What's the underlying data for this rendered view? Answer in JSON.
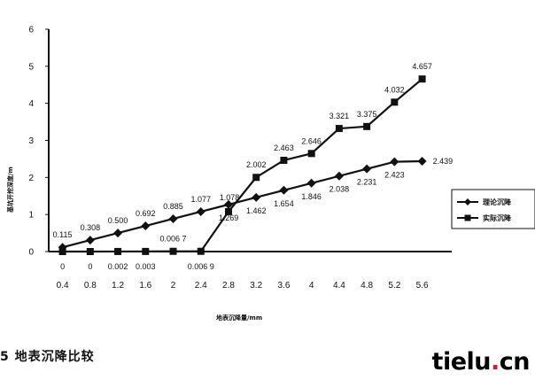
{
  "chart_data": {
    "type": "line",
    "xlabel": "地表沉降量/mm",
    "ylabel": "基坑开挖深度/m",
    "ylim": [
      0,
      6
    ],
    "yticks": [
      "0",
      "1",
      "2",
      "3",
      "4",
      "5",
      "6"
    ],
    "x_categories": [
      "0.4",
      "0.8",
      "1.2",
      "1.6",
      "2",
      "2.4",
      "2.8",
      "3.2",
      "3.6",
      "4",
      "4.4",
      "4.8",
      "5.2",
      "5.6"
    ],
    "legend_position": "right",
    "series": [
      {
        "name": "理论沉降",
        "marker": "diamond",
        "x": [
          0.4,
          0.8,
          1.2,
          1.6,
          2.0,
          2.4,
          2.8,
          3.2,
          3.6,
          4.0,
          4.4,
          4.8,
          5.2,
          5.6
        ],
        "values": [
          0.115,
          0.308,
          0.5,
          0.692,
          0.885,
          1.077,
          1.269,
          1.462,
          1.654,
          1.846,
          2.038,
          2.231,
          2.423,
          2.439
        ],
        "labels": [
          "0.115",
          "0.308",
          "0.500",
          "0.692",
          "0.885",
          "1.077",
          "1.269",
          "1.462",
          "1.654",
          "1.846",
          "2.038",
          "2.231",
          "2.423",
          "2.439"
        ]
      },
      {
        "name": "实际沉降",
        "marker": "square",
        "x": [
          0.4,
          0.8,
          1.2,
          1.6,
          2.0,
          2.4,
          2.8,
          3.2,
          3.6,
          4.0,
          4.4,
          4.8,
          5.2,
          5.6
        ],
        "values": [
          0,
          0,
          0.002,
          0.003,
          0.0067,
          0.0069,
          1.078,
          2.002,
          2.463,
          2.646,
          3.321,
          3.375,
          4.032,
          4.657
        ],
        "labels": [
          "0",
          "0",
          "0.002",
          "0.003",
          "0.006 7",
          "0.006 9",
          "1.078",
          "2.002",
          "2.463",
          "2.646",
          "3.321",
          "3.375",
          "4.032",
          "4.657"
        ]
      }
    ]
  },
  "caption": "5   地表沉降比较",
  "watermark": {
    "prefix": "tielu",
    "dot": ".",
    "suffix": "cn"
  }
}
